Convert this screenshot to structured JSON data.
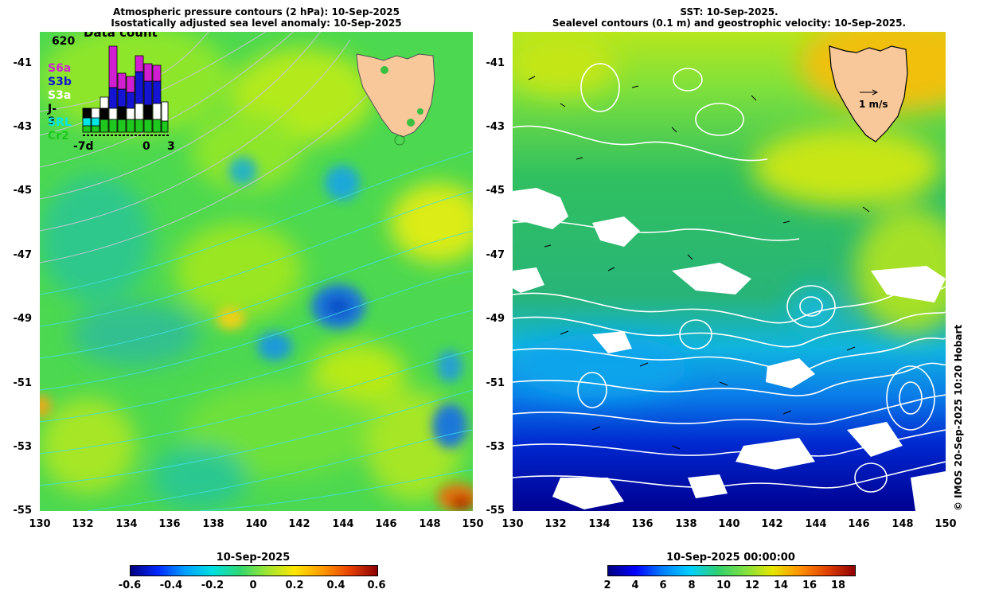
{
  "left_panel": {
    "title_line1": "Atmospheric pressure contours (2 hPa): 10-Sep-2025",
    "title_line2": "Isostatically adjusted sea level anomaly: 10-Sep-2025",
    "inset": {
      "title": "Data count",
      "max_label": "620",
      "x_labels": [
        "-7d",
        "0",
        "3"
      ],
      "legend": [
        {
          "label": "S6a",
          "color": "#d21ed2"
        },
        {
          "label": "S3b",
          "color": "#1414d2"
        },
        {
          "label": "S3a",
          "color": "#ffffff"
        },
        {
          "label": "J-3",
          "color": "#000000"
        },
        {
          "label": "SRL",
          "color": "#00e6e6"
        },
        {
          "label": "Cr2",
          "color": "#1ec81e"
        }
      ]
    },
    "colorbar": {
      "date": "10-Sep-2025",
      "ticks": [
        "-0.6",
        "-0.4",
        "-0.2",
        "0",
        "0.2",
        "0.4",
        "0.6"
      ]
    }
  },
  "right_panel": {
    "title_line1": "SST: 10-Sep-2025.",
    "title_line2": "Sealevel contours (0.1 m) and geostrophic velocity: 10-Sep-2025.",
    "velocity_scale_label": "1 m/s",
    "colorbar": {
      "date": "10-Sep-2025 00:00:00",
      "ticks": [
        "2",
        "4",
        "6",
        "8",
        "10",
        "12",
        "14",
        "16",
        "18"
      ]
    }
  },
  "axes": {
    "y_ticks": [
      "-41",
      "-43",
      "-45",
      "-47",
      "-49",
      "-51",
      "-53",
      "-55"
    ],
    "x_ticks": [
      "130",
      "132",
      "134",
      "136",
      "138",
      "140",
      "142",
      "144",
      "146",
      "148",
      "150"
    ]
  },
  "copyright": "© IMOS 20-Sep-2025 10:20 Hobart",
  "colors": {
    "land": "#f8c89a",
    "sla_scale": [
      "#00007f",
      "#0050ff",
      "#00c8ff",
      "#00e07a",
      "#7ae600",
      "#ffe600",
      "#ff8c00",
      "#b40000"
    ],
    "sst_scale": [
      "#00007f",
      "#0000ff",
      "#0080ff",
      "#00d0ff",
      "#30d070",
      "#80e040",
      "#e6e600",
      "#ff9000",
      "#b00000"
    ]
  }
}
